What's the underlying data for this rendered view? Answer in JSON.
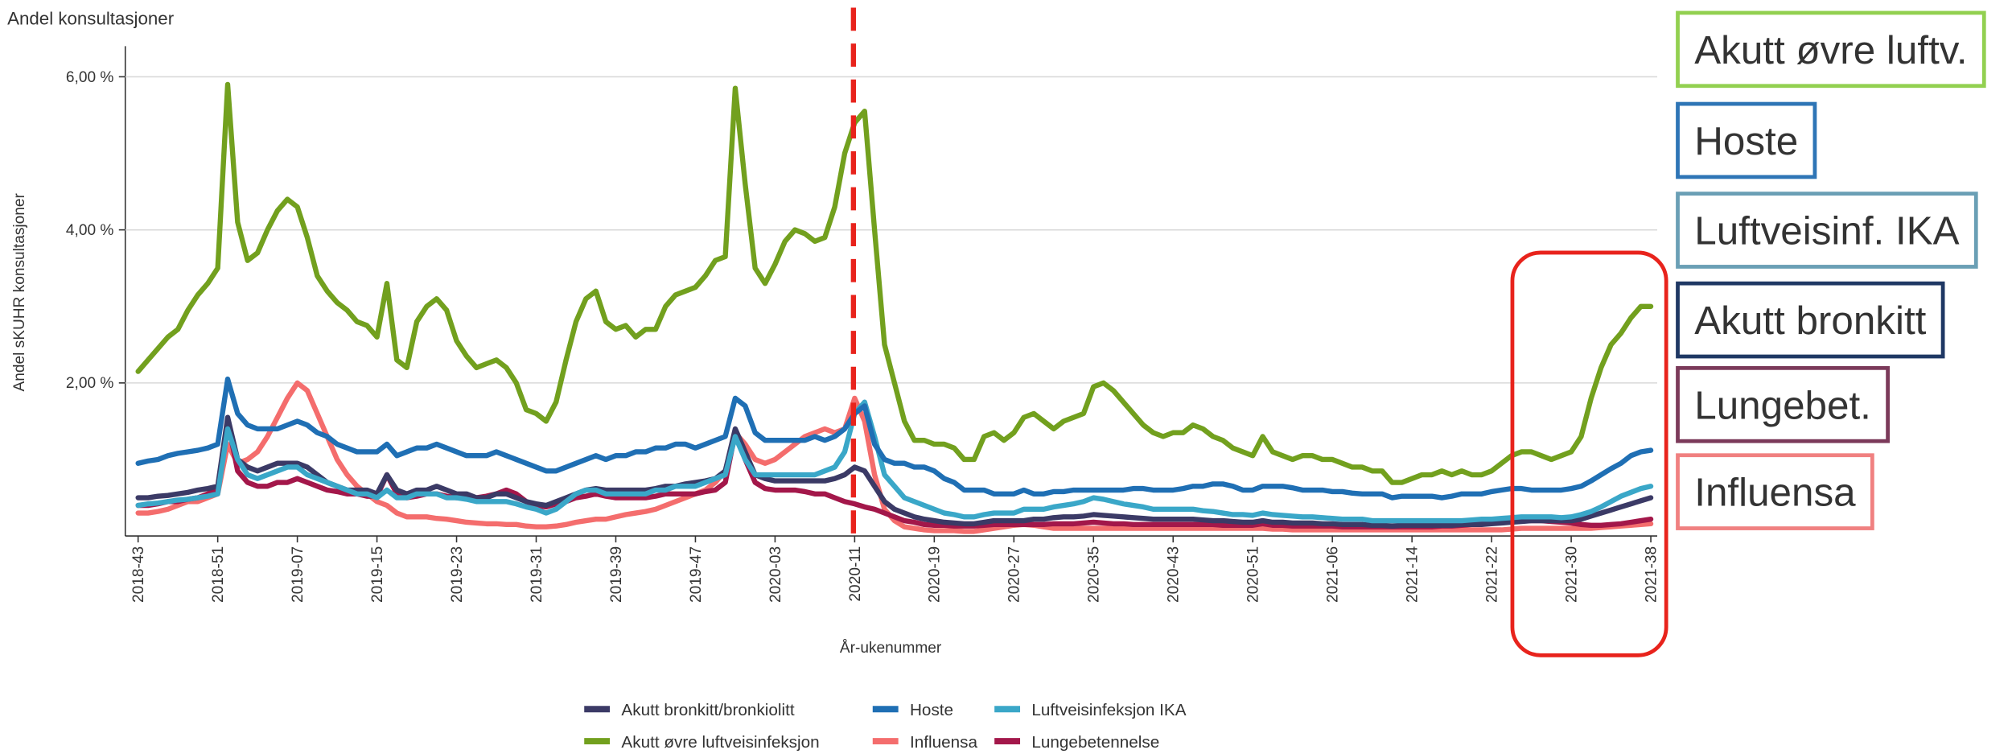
{
  "chart_data": {
    "type": "line",
    "title": "Andel konsultasjoner",
    "x_label": "År-ukenummer",
    "y_label": "Andel sKUHR konsultasjoner",
    "ylim": [
      0,
      6.4
    ],
    "yticks": [
      {
        "value": 2,
        "label": "2,00 %"
      },
      {
        "value": 4,
        "label": "4,00 %"
      },
      {
        "value": 6,
        "label": "6,00 %"
      }
    ],
    "grid": true,
    "legend": "bottom",
    "categories": [
      "2018-43",
      null,
      null,
      null,
      null,
      null,
      null,
      null,
      "2018-51",
      null,
      null,
      null,
      null,
      null,
      null,
      null,
      "2019-07",
      null,
      null,
      null,
      null,
      null,
      null,
      null,
      "2019-15",
      null,
      null,
      null,
      null,
      null,
      null,
      null,
      "2019-23",
      null,
      null,
      null,
      null,
      null,
      null,
      null,
      "2019-31",
      null,
      null,
      null,
      null,
      null,
      null,
      null,
      "2019-39",
      null,
      null,
      null,
      null,
      null,
      null,
      null,
      "2019-47",
      null,
      null,
      null,
      null,
      null,
      null,
      null,
      "2020-03",
      null,
      null,
      null,
      null,
      null,
      null,
      null,
      "2020-11",
      null,
      null,
      null,
      null,
      null,
      null,
      null,
      "2020-19",
      null,
      null,
      null,
      null,
      null,
      null,
      null,
      "2020-27",
      null,
      null,
      null,
      null,
      null,
      null,
      null,
      "2020-35",
      null,
      null,
      null,
      null,
      null,
      null,
      null,
      "2020-43",
      null,
      null,
      null,
      null,
      null,
      null,
      null,
      "2020-51",
      null,
      null,
      null,
      null,
      null,
      null,
      null,
      "2021-06",
      null,
      null,
      null,
      null,
      null,
      null,
      null,
      "2021-14",
      null,
      null,
      null,
      null,
      null,
      null,
      null,
      "2021-22",
      null,
      null,
      null,
      null,
      null,
      null,
      null,
      "2021-30",
      null,
      null,
      null,
      null,
      null,
      null,
      null,
      "2021-38"
    ],
    "series": [
      {
        "name": "Akutt bronkitt/bronkiolitt",
        "color": "#3b3a66",
        "values": [
          0.5,
          0.5,
          0.52,
          0.53,
          0.55,
          0.57,
          0.6,
          0.62,
          0.65,
          1.55,
          1.0,
          0.9,
          0.85,
          0.9,
          0.95,
          0.95,
          0.95,
          0.9,
          0.8,
          0.7,
          0.65,
          0.6,
          0.6,
          0.6,
          0.55,
          0.8,
          0.6,
          0.55,
          0.6,
          0.6,
          0.65,
          0.6,
          0.55,
          0.55,
          0.5,
          0.5,
          0.55,
          0.55,
          0.5,
          0.45,
          0.42,
          0.4,
          0.45,
          0.5,
          0.55,
          0.6,
          0.62,
          0.6,
          0.6,
          0.6,
          0.6,
          0.6,
          0.62,
          0.65,
          0.65,
          0.68,
          0.7,
          0.72,
          0.75,
          0.85,
          1.4,
          1.1,
          0.8,
          0.75,
          0.72,
          0.72,
          0.72,
          0.72,
          0.72,
          0.72,
          0.75,
          0.8,
          0.9,
          0.85,
          0.65,
          0.45,
          0.35,
          0.3,
          0.25,
          0.22,
          0.2,
          0.18,
          0.17,
          0.16,
          0.16,
          0.18,
          0.2,
          0.2,
          0.2,
          0.2,
          0.22,
          0.22,
          0.24,
          0.25,
          0.25,
          0.26,
          0.28,
          0.27,
          0.26,
          0.25,
          0.24,
          0.23,
          0.22,
          0.22,
          0.22,
          0.22,
          0.22,
          0.21,
          0.2,
          0.2,
          0.19,
          0.18,
          0.18,
          0.2,
          0.18,
          0.18,
          0.17,
          0.17,
          0.17,
          0.16,
          0.16,
          0.15,
          0.15,
          0.15,
          0.14,
          0.14,
          0.13,
          0.14,
          0.14,
          0.14,
          0.14,
          0.14,
          0.14,
          0.15,
          0.15,
          0.15,
          0.16,
          0.17,
          0.18,
          0.19,
          0.2,
          0.2,
          0.2,
          0.2,
          0.2,
          0.22,
          0.26,
          0.3,
          0.34,
          0.38,
          0.42,
          0.46,
          0.5
        ]
      },
      {
        "name": "Hoste",
        "color": "#1f6fb4",
        "values": [
          0.95,
          0.98,
          1.0,
          1.05,
          1.08,
          1.1,
          1.12,
          1.15,
          1.2,
          2.05,
          1.6,
          1.45,
          1.4,
          1.4,
          1.4,
          1.45,
          1.5,
          1.45,
          1.35,
          1.3,
          1.2,
          1.15,
          1.1,
          1.1,
          1.1,
          1.2,
          1.05,
          1.1,
          1.15,
          1.15,
          1.2,
          1.15,
          1.1,
          1.05,
          1.05,
          1.05,
          1.1,
          1.05,
          1.0,
          0.95,
          0.9,
          0.85,
          0.85,
          0.9,
          0.95,
          1.0,
          1.05,
          1.0,
          1.05,
          1.05,
          1.1,
          1.1,
          1.15,
          1.15,
          1.2,
          1.2,
          1.15,
          1.2,
          1.25,
          1.3,
          1.8,
          1.7,
          1.35,
          1.25,
          1.25,
          1.25,
          1.25,
          1.25,
          1.3,
          1.25,
          1.3,
          1.4,
          1.6,
          1.7,
          1.2,
          1.0,
          0.95,
          0.95,
          0.9,
          0.9,
          0.85,
          0.75,
          0.7,
          0.6,
          0.6,
          0.6,
          0.55,
          0.55,
          0.55,
          0.6,
          0.55,
          0.55,
          0.58,
          0.58,
          0.6,
          0.6,
          0.6,
          0.6,
          0.6,
          0.6,
          0.62,
          0.62,
          0.6,
          0.6,
          0.6,
          0.62,
          0.65,
          0.65,
          0.68,
          0.68,
          0.65,
          0.6,
          0.6,
          0.65,
          0.65,
          0.65,
          0.63,
          0.6,
          0.6,
          0.6,
          0.58,
          0.58,
          0.56,
          0.55,
          0.55,
          0.55,
          0.5,
          0.52,
          0.52,
          0.52,
          0.52,
          0.5,
          0.52,
          0.55,
          0.55,
          0.55,
          0.58,
          0.6,
          0.62,
          0.62,
          0.6,
          0.6,
          0.6,
          0.6,
          0.62,
          0.65,
          0.72,
          0.8,
          0.88,
          0.95,
          1.05,
          1.1,
          1.12
        ]
      },
      {
        "name": "Luftveisinfeksjon IKA",
        "color": "#3aa7c8",
        "values": [
          0.4,
          0.42,
          0.43,
          0.45,
          0.47,
          0.48,
          0.5,
          0.52,
          0.55,
          1.4,
          1.0,
          0.8,
          0.75,
          0.8,
          0.85,
          0.9,
          0.9,
          0.8,
          0.75,
          0.7,
          0.65,
          0.6,
          0.55,
          0.55,
          0.5,
          0.6,
          0.5,
          0.5,
          0.55,
          0.55,
          0.55,
          0.5,
          0.5,
          0.48,
          0.45,
          0.45,
          0.45,
          0.45,
          0.42,
          0.38,
          0.35,
          0.3,
          0.35,
          0.45,
          0.55,
          0.6,
          0.6,
          0.55,
          0.55,
          0.55,
          0.55,
          0.55,
          0.6,
          0.6,
          0.65,
          0.65,
          0.65,
          0.7,
          0.75,
          0.8,
          1.3,
          1.0,
          0.8,
          0.8,
          0.8,
          0.8,
          0.8,
          0.8,
          0.8,
          0.85,
          0.9,
          1.1,
          1.6,
          1.75,
          1.3,
          0.8,
          0.65,
          0.5,
          0.45,
          0.4,
          0.35,
          0.3,
          0.28,
          0.25,
          0.25,
          0.28,
          0.3,
          0.3,
          0.3,
          0.35,
          0.35,
          0.35,
          0.38,
          0.4,
          0.42,
          0.45,
          0.5,
          0.48,
          0.45,
          0.42,
          0.4,
          0.38,
          0.35,
          0.35,
          0.35,
          0.35,
          0.35,
          0.33,
          0.32,
          0.3,
          0.28,
          0.28,
          0.27,
          0.3,
          0.28,
          0.27,
          0.26,
          0.25,
          0.25,
          0.24,
          0.23,
          0.22,
          0.22,
          0.22,
          0.2,
          0.2,
          0.2,
          0.2,
          0.2,
          0.2,
          0.2,
          0.2,
          0.2,
          0.2,
          0.21,
          0.22,
          0.22,
          0.23,
          0.24,
          0.25,
          0.25,
          0.25,
          0.25,
          0.24,
          0.25,
          0.28,
          0.32,
          0.38,
          0.45,
          0.52,
          0.57,
          0.62,
          0.65
        ]
      },
      {
        "name": "Akutt øvre luftveisinfeksjon",
        "color": "#72a01e",
        "values": [
          2.15,
          2.3,
          2.45,
          2.6,
          2.7,
          2.95,
          3.15,
          3.3,
          3.5,
          5.9,
          4.1,
          3.6,
          3.7,
          4.0,
          4.25,
          4.4,
          4.3,
          3.9,
          3.4,
          3.2,
          3.05,
          2.95,
          2.8,
          2.75,
          2.6,
          3.3,
          2.3,
          2.2,
          2.8,
          3.0,
          3.1,
          2.95,
          2.55,
          2.35,
          2.2,
          2.25,
          2.3,
          2.2,
          2.0,
          1.65,
          1.6,
          1.5,
          1.75,
          2.3,
          2.8,
          3.1,
          3.2,
          2.8,
          2.7,
          2.75,
          2.6,
          2.7,
          2.7,
          3.0,
          3.15,
          3.2,
          3.25,
          3.4,
          3.6,
          3.65,
          5.85,
          4.6,
          3.5,
          3.3,
          3.55,
          3.85,
          4.0,
          3.95,
          3.85,
          3.9,
          4.3,
          5.0,
          5.4,
          5.55,
          4.0,
          2.5,
          2.0,
          1.5,
          1.25,
          1.25,
          1.2,
          1.2,
          1.15,
          1.0,
          1.0,
          1.3,
          1.35,
          1.25,
          1.35,
          1.55,
          1.6,
          1.5,
          1.4,
          1.5,
          1.55,
          1.6,
          1.95,
          2.0,
          1.9,
          1.75,
          1.6,
          1.45,
          1.35,
          1.3,
          1.35,
          1.35,
          1.45,
          1.4,
          1.3,
          1.25,
          1.15,
          1.1,
          1.05,
          1.3,
          1.1,
          1.05,
          1.0,
          1.05,
          1.05,
          1.0,
          1.0,
          0.95,
          0.9,
          0.9,
          0.85,
          0.85,
          0.7,
          0.7,
          0.75,
          0.8,
          0.8,
          0.85,
          0.8,
          0.85,
          0.8,
          0.8,
          0.85,
          0.95,
          1.05,
          1.1,
          1.1,
          1.05,
          1.0,
          1.05,
          1.1,
          1.3,
          1.8,
          2.2,
          2.5,
          2.65,
          2.85,
          3.0,
          3.0
        ]
      },
      {
        "name": "Influensa",
        "color": "#f46d6d",
        "values": [
          0.3,
          0.3,
          0.32,
          0.35,
          0.4,
          0.45,
          0.45,
          0.5,
          0.55,
          1.2,
          0.95,
          1.0,
          1.1,
          1.3,
          1.55,
          1.8,
          2.0,
          1.9,
          1.6,
          1.3,
          1.0,
          0.8,
          0.65,
          0.55,
          0.45,
          0.4,
          0.3,
          0.25,
          0.25,
          0.25,
          0.23,
          0.22,
          0.2,
          0.18,
          0.17,
          0.16,
          0.16,
          0.15,
          0.15,
          0.13,
          0.12,
          0.12,
          0.13,
          0.15,
          0.18,
          0.2,
          0.22,
          0.22,
          0.25,
          0.28,
          0.3,
          0.32,
          0.35,
          0.4,
          0.45,
          0.5,
          0.55,
          0.6,
          0.7,
          0.85,
          1.35,
          1.2,
          1.0,
          0.95,
          1.0,
          1.1,
          1.2,
          1.3,
          1.35,
          1.4,
          1.35,
          1.4,
          1.8,
          1.5,
          0.8,
          0.35,
          0.2,
          0.12,
          0.1,
          0.08,
          0.07,
          0.07,
          0.07,
          0.06,
          0.06,
          0.08,
          0.1,
          0.12,
          0.14,
          0.15,
          0.14,
          0.12,
          0.1,
          0.1,
          0.1,
          0.1,
          0.1,
          0.1,
          0.1,
          0.1,
          0.1,
          0.1,
          0.1,
          0.1,
          0.1,
          0.1,
          0.1,
          0.1,
          0.1,
          0.1,
          0.1,
          0.1,
          0.1,
          0.1,
          0.09,
          0.09,
          0.08,
          0.08,
          0.08,
          0.08,
          0.08,
          0.08,
          0.08,
          0.08,
          0.08,
          0.08,
          0.08,
          0.08,
          0.08,
          0.08,
          0.08,
          0.08,
          0.08,
          0.08,
          0.08,
          0.08,
          0.08,
          0.08,
          0.09,
          0.1,
          0.1,
          0.1,
          0.1,
          0.1,
          0.1,
          0.1,
          0.1,
          0.11,
          0.12,
          0.13,
          0.14,
          0.15,
          0.16
        ]
      },
      {
        "name": "Lungebetennelse",
        "color": "#a3174a",
        "values": [
          0.4,
          0.4,
          0.42,
          0.45,
          0.45,
          0.48,
          0.5,
          0.55,
          0.6,
          1.5,
          0.85,
          0.7,
          0.65,
          0.65,
          0.7,
          0.7,
          0.75,
          0.7,
          0.65,
          0.6,
          0.58,
          0.55,
          0.55,
          0.52,
          0.52,
          0.8,
          0.55,
          0.5,
          0.52,
          0.55,
          0.55,
          0.52,
          0.5,
          0.5,
          0.5,
          0.52,
          0.55,
          0.6,
          0.55,
          0.45,
          0.4,
          0.38,
          0.42,
          0.45,
          0.5,
          0.52,
          0.55,
          0.52,
          0.5,
          0.5,
          0.5,
          0.5,
          0.52,
          0.55,
          0.55,
          0.55,
          0.55,
          0.58,
          0.6,
          0.7,
          1.35,
          1.0,
          0.7,
          0.62,
          0.6,
          0.6,
          0.6,
          0.58,
          0.55,
          0.55,
          0.5,
          0.45,
          0.42,
          0.38,
          0.35,
          0.3,
          0.25,
          0.2,
          0.18,
          0.15,
          0.14,
          0.14,
          0.13,
          0.13,
          0.13,
          0.14,
          0.15,
          0.15,
          0.15,
          0.15,
          0.15,
          0.15,
          0.16,
          0.16,
          0.16,
          0.17,
          0.18,
          0.17,
          0.16,
          0.16,
          0.15,
          0.15,
          0.15,
          0.15,
          0.15,
          0.15,
          0.15,
          0.15,
          0.15,
          0.14,
          0.14,
          0.14,
          0.14,
          0.16,
          0.14,
          0.14,
          0.13,
          0.13,
          0.13,
          0.13,
          0.13,
          0.12,
          0.12,
          0.12,
          0.12,
          0.12,
          0.12,
          0.12,
          0.12,
          0.12,
          0.12,
          0.13,
          0.13,
          0.14,
          0.15,
          0.16,
          0.17,
          0.18,
          0.2,
          0.2,
          0.2,
          0.2,
          0.19,
          0.18,
          0.17,
          0.15,
          0.14,
          0.14,
          0.15,
          0.16,
          0.18,
          0.2,
          0.22
        ]
      }
    ],
    "annotations": [
      {
        "text": "Akutt øvre luftv.",
        "color": "#92d050"
      },
      {
        "text": "Hoste",
        "color": "#2e75b6"
      },
      {
        "text": "Luftveisinf. IKA",
        "color": "#6a9fb5"
      },
      {
        "text": "Akutt bronkitt",
        "color": "#1f3864"
      },
      {
        "text": "Lungebet.",
        "color": "#7b3a5a"
      },
      {
        "text": "Influensa",
        "color": "#f08080"
      }
    ]
  }
}
